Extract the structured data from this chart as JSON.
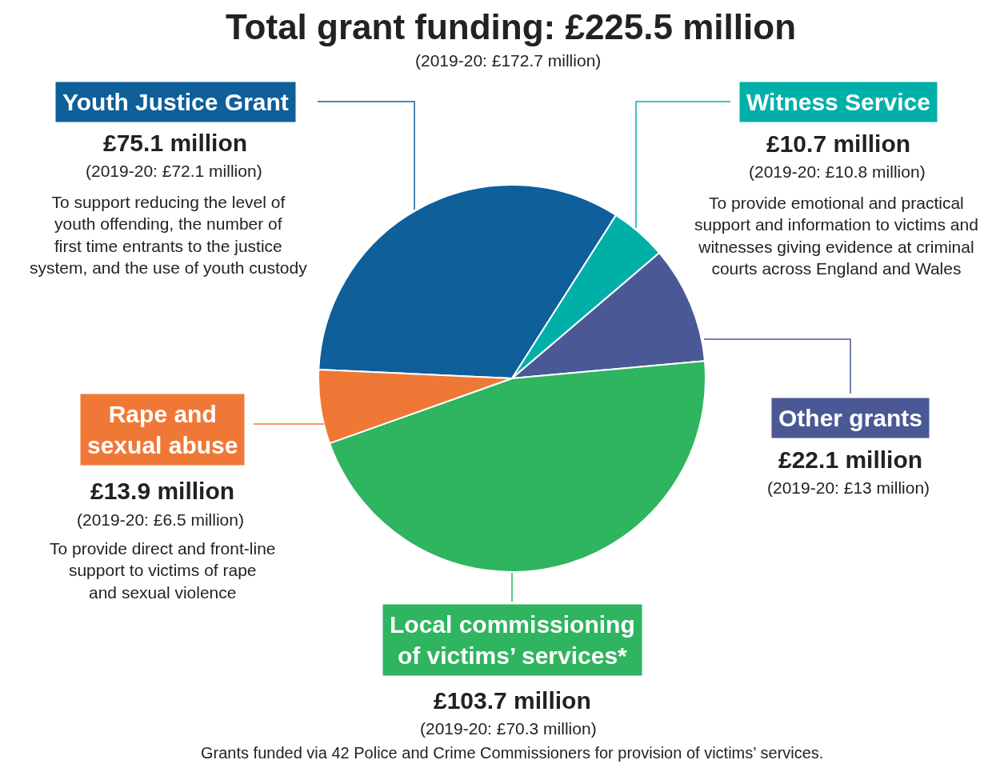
{
  "chart_data": {
    "type": "pie",
    "title": "Total grant funding: £225.5 million",
    "subtitle": "(2019-20: £172.7 million)",
    "categories": [
      "Youth Justice Grant",
      "Witness Service",
      "Other grants",
      "Local commissioning\nof victims’ services*",
      "Rape and\nsexual abuse"
    ],
    "values": [
      75.1,
      10.7,
      22.1,
      103.7,
      13.9
    ],
    "colors": [
      "#0e5f9a",
      "#00b0a8",
      "#4a5896",
      "#2fb45f",
      "#f07836"
    ],
    "value_labels": [
      "£75.1 million",
      "£10.7 million",
      "£22.1 million",
      "£103.7 million",
      "£13.9 million"
    ],
    "annotations": [
      "(2019-20: £72.1 million)",
      "To support reducing the level of\nyouth offending, the number of\nfirst time entrants to the justice\nsystem, and the use of youth custody",
      "(2019-20: £10.8 million)",
      "To provide emotional and practical\nsupport and information to victims and\nwitnesses giving evidence at criminal\ncourts across England and Wales",
      "(2019-20: £13 million)",
      "(2019-20: £70.3 million)",
      "(2019-20: £6.5 million)",
      "To provide direct and front-line\nsupport to victims of rape\nand sexual violence",
      "Grants funded via 42 Police and Crime Commissioners for provision of victims’ services."
    ]
  }
}
